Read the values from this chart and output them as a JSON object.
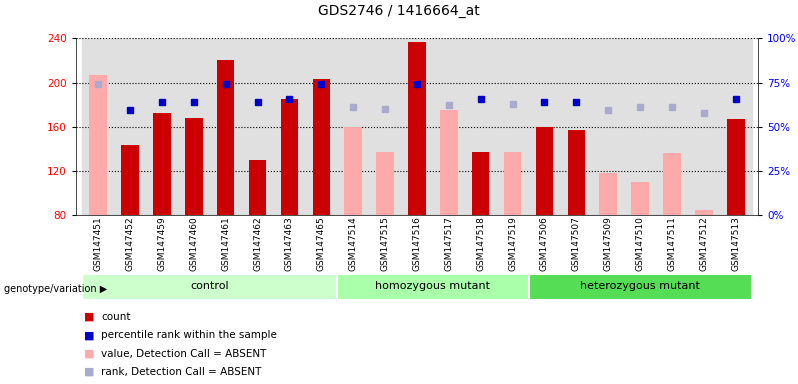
{
  "title": "GDS2746 / 1416664_at",
  "samples": [
    "GSM147451",
    "GSM147452",
    "GSM147459",
    "GSM147460",
    "GSM147461",
    "GSM147462",
    "GSM147463",
    "GSM147465",
    "GSM147514",
    "GSM147515",
    "GSM147516",
    "GSM147517",
    "GSM147518",
    "GSM147519",
    "GSM147506",
    "GSM147507",
    "GSM147509",
    "GSM147510",
    "GSM147511",
    "GSM147512",
    "GSM147513"
  ],
  "groups": [
    {
      "name": "control",
      "start": 0,
      "end": 8,
      "color": "#ccffcc"
    },
    {
      "name": "homozygous mutant",
      "start": 8,
      "end": 14,
      "color": "#aaffaa"
    },
    {
      "name": "heterozygous mutant",
      "start": 14,
      "end": 21,
      "color": "#55dd55"
    }
  ],
  "count_values": [
    null,
    143,
    172,
    168,
    220,
    130,
    185,
    203,
    null,
    null,
    237,
    null,
    137,
    null,
    160,
    157,
    null,
    null,
    null,
    null,
    167
  ],
  "count_absent_values": [
    207,
    null,
    null,
    null,
    null,
    null,
    null,
    null,
    160,
    137,
    null,
    175,
    null,
    137,
    null,
    null,
    118,
    110,
    136,
    85,
    null
  ],
  "percentile_present": [
    null,
    175,
    182,
    182,
    199,
    182,
    185,
    199,
    null,
    null,
    199,
    null,
    185,
    null,
    182,
    182,
    null,
    null,
    null,
    null,
    185
  ],
  "percentile_absent": [
    199,
    null,
    null,
    null,
    null,
    null,
    null,
    null,
    178,
    176,
    null,
    180,
    null,
    181,
    null,
    null,
    175,
    178,
    178,
    172,
    null
  ],
  "ylim": [
    80,
    240
  ],
  "yticks_left": [
    80,
    120,
    160,
    200,
    240
  ],
  "yticks_right": [
    0,
    25,
    50,
    75,
    100
  ],
  "count_color": "#cc0000",
  "absent_value_color": "#ffaaaa",
  "present_rank_color": "#0000cc",
  "absent_rank_color": "#aaaacc",
  "col_bg_color": "#e0e0e0",
  "genotype_label": "genotype/variation"
}
